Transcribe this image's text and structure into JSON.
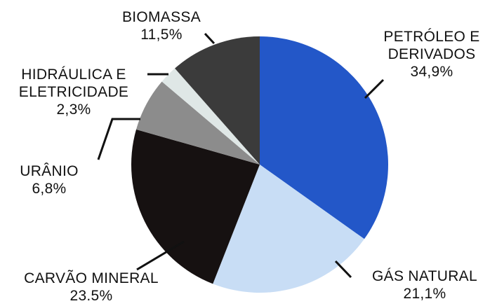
{
  "chart_data": {
    "type": "pie",
    "categories": [
      "PETRÓLEO E DERIVADOS",
      "GÁS NATURAL",
      "CARVÃO MINERAL",
      "URÂNIO",
      "HIDRÁULICA E ELETRICIDADE",
      "BIOMASSA"
    ],
    "values": [
      34.9,
      21.1,
      23.5,
      6.8,
      2.3,
      11.5
    ],
    "value_labels": [
      "34,9%",
      "21,1%",
      "23.5%",
      "6,8%",
      "2,3%",
      "11,5%"
    ],
    "colors": [
      "#2357c8",
      "#c8ddf5",
      "#161111",
      "#8c8c8c",
      "#dfe7e6",
      "#3b3b3b"
    ]
  }
}
